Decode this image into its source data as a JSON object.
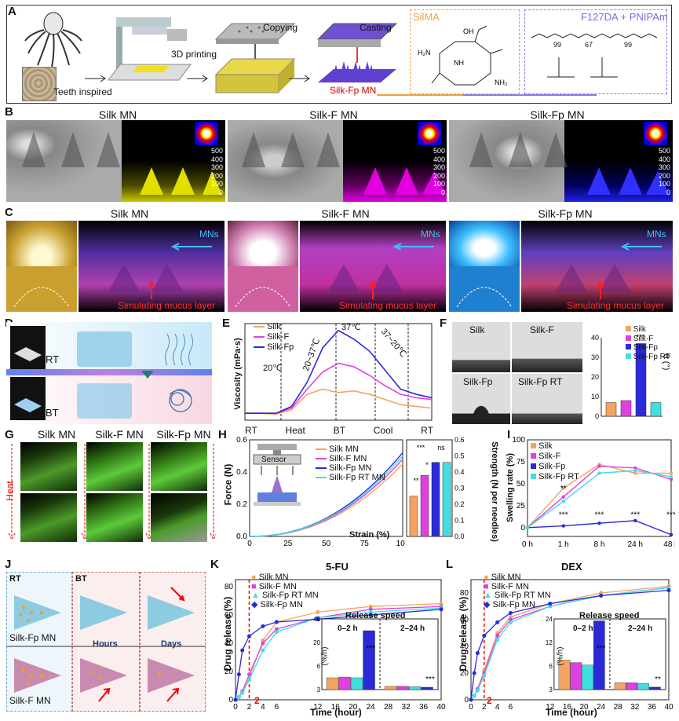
{
  "panels": {
    "A": "A",
    "B": "B",
    "C": "C",
    "D": "D",
    "E": "E",
    "F": "F",
    "G": "G",
    "H": "H",
    "I": "I",
    "J": "J",
    "K": "K",
    "L": "L"
  },
  "a": {
    "teeth": "Teeth inspired",
    "print": "3D printing",
    "copy": "Copying",
    "cast": "Casting",
    "product": "Silk-Fp MN",
    "silma": "SilMA",
    "f127": "F127DA + PNIPAm",
    "n99a": "99",
    "n67": "67",
    "n99b": "99",
    "n": "n"
  },
  "b": {
    "t1": "Silk MN",
    "t2": "Silk-F MN",
    "t3": "Silk-Fp MN",
    "z": [
      "500",
      "400",
      "300",
      "200",
      "100",
      "0"
    ]
  },
  "c": {
    "t1": "Silk MN",
    "t2": "Silk-F MN",
    "t3": "Silk-Fp MN",
    "mns": "MNs",
    "mucus": "Simulating mucus layer"
  },
  "d": {
    "rt": "RT",
    "bt": "BT"
  },
  "e": {
    "ylabel": "Viscosity (mPa·s)",
    "legend": [
      "Silk",
      "Silk-F",
      "Silk-Fp"
    ],
    "stages": [
      "RT",
      "Heat",
      "BT",
      "Cool",
      "RT"
    ],
    "anno": [
      "20℃",
      "20~37℃",
      "37℃",
      "37~20℃"
    ]
  },
  "f": {
    "imgs": [
      "Silk",
      "Silk-F",
      "Silk-Fp",
      "Silk-Fp RT"
    ],
    "legend": [
      "Silk",
      "Silk-F",
      "Silk-Fp",
      "Silk-Fp RT"
    ],
    "ylabel": "θ (°)",
    "sig": "***"
  },
  "g": {
    "t1": "Silk MN",
    "t2": "Silk-F MN",
    "t3": "Silk-Fp MN",
    "heat": "Heat"
  },
  "h": {
    "ylabel": "Force (N)",
    "xlabel": "Strain (%)",
    "y2label": "Strength (N per needles)",
    "legend": [
      "Silk MN",
      "Silk-F MN",
      "Silk-Fp MN",
      "Silk-Fp RT MN"
    ],
    "sensor": "Sensor",
    "sigs": [
      "***",
      "*",
      "ns",
      "**"
    ]
  },
  "i": {
    "ylabel": "Swelling rate (%)",
    "legend": [
      "Silk",
      "Silk-F",
      "Silk-Fp",
      "Silk-Fp RT"
    ],
    "sig": "***",
    "sig2": "**"
  },
  "j": {
    "rt": "RT",
    "bt": "BT",
    "hours": "Hours",
    "days": "Days",
    "fp": "Silk-Fp MN",
    "f": "Silk-F MN"
  },
  "k": {
    "title": "5-FU",
    "ylabel": "Drug release (%)",
    "xlabel": "Time (hour)",
    "legend": [
      "Silk MN",
      "Silk-F MN",
      "Silk-Fp RT MN",
      "Silk-Fp MN"
    ],
    "speed": "Release speed",
    "w1": "0–2 h",
    "w2": "2–24 h",
    "unit": "(%/h)",
    "sig": "***",
    "mark": "2"
  },
  "l": {
    "title": "DEX",
    "ylabel": "Drug release (%)",
    "xlabel": "Time (hour)",
    "legend": [
      "Silk MN",
      "Silk-F MN",
      "Silk-Fp RT MN",
      "Silk-Fp MN"
    ],
    "speed": "Release speed",
    "w1": "0–2 h",
    "w2": "2–24 h",
    "unit": "(%/h)",
    "sig": "***",
    "sig2": "**",
    "mark": "2"
  },
  "colors": {
    "silk": "#f4a460",
    "silkf": "#e040e0",
    "silkfp": "#2a2ad8",
    "silkfprt": "#40e0e0"
  },
  "chart_data": [
    {
      "id": "E",
      "type": "line",
      "ylabel": "Viscosity (mPa·s)",
      "series": [
        {
          "name": "Silk",
          "values": [
            40,
            40,
            35,
            60,
            150,
            180,
            160,
            170,
            150,
            120,
            90,
            80,
            70
          ]
        },
        {
          "name": "Silk-F",
          "values": [
            40,
            40,
            40,
            70,
            180,
            280,
            330,
            310,
            260,
            200,
            150,
            130,
            120
          ]
        },
        {
          "name": "Silk-Fp",
          "values": [
            40,
            40,
            40,
            80,
            220,
            420,
            520,
            470,
            400,
            290,
            180,
            150,
            130
          ]
        }
      ]
    },
    {
      "id": "F",
      "type": "bar",
      "ylabel": "θ (°)",
      "categories": [
        "Silk",
        "Silk-F",
        "Silk-Fp",
        "Silk-Fp RT"
      ],
      "values": [
        7,
        8,
        37,
        7
      ],
      "ylim": [
        0,
        40
      ],
      "ticks": [
        "0",
        "10",
        "20",
        "30",
        "40"
      ]
    },
    {
      "id": "H",
      "type": "bar",
      "y2label": "Strength (N per needles)",
      "categories": [
        "Silk MN",
        "Silk-F MN",
        "Silk-Fp MN",
        "Silk-Fp RT MN"
      ],
      "values": [
        0.25,
        0.38,
        0.46,
        0.46
      ],
      "ylim": [
        0,
        0.6
      ],
      "ticks": [
        "0.0",
        "0.1",
        "0.2",
        "0.3",
        "0.4",
        "0.5",
        "0.6"
      ]
    },
    {
      "id": "H_curve",
      "type": "line",
      "xlabel": "Strain (%)",
      "ylabel": "Force (N)",
      "xlim": [
        0,
        100
      ],
      "ylim": [
        0,
        0.6
      ],
      "xticks": [
        "0",
        "25",
        "50",
        "75",
        "100"
      ],
      "yticks": [
        "0.0",
        "0.2",
        "0.4",
        "0.6"
      ]
    },
    {
      "id": "I",
      "type": "line",
      "x": [
        "0 h",
        "1 h",
        "8 h",
        "24 h",
        "48 h"
      ],
      "ylabel": "Swelling rate (%)",
      "ylim": [
        -10,
        100
      ],
      "yticks": [
        "0",
        "25",
        "50",
        "75",
        "100"
      ],
      "series": [
        {
          "name": "Silk",
          "values": [
            0,
            45,
            72,
            62,
            62
          ]
        },
        {
          "name": "Silk-F",
          "values": [
            0,
            35,
            70,
            68,
            55
          ]
        },
        {
          "name": "Silk-Fp",
          "values": [
            0,
            2,
            5,
            8,
            -8
          ]
        },
        {
          "name": "Silk-Fp RT",
          "values": [
            0,
            30,
            62,
            65,
            58
          ]
        }
      ]
    },
    {
      "id": "K",
      "type": "line",
      "title": "5-FU",
      "x": [
        0,
        0.5,
        1,
        2,
        4,
        6,
        12,
        24,
        40
      ],
      "xticks": [
        "0",
        "2",
        "4",
        "6",
        "12",
        "16",
        "20",
        "24",
        "28",
        "32",
        "36",
        "40"
      ],
      "yticks": [
        "0",
        "20",
        "40",
        "60",
        "80"
      ],
      "ylim": [
        0,
        85
      ],
      "series": [
        {
          "name": "Silk MN",
          "values": [
            0,
            2,
            5,
            15,
            42,
            55,
            62,
            66,
            68
          ]
        },
        {
          "name": "Silk-F MN",
          "values": [
            0,
            2,
            6,
            18,
            40,
            50,
            58,
            64,
            66
          ]
        },
        {
          "name": "Silk-Fp RT MN",
          "values": [
            0,
            2,
            5,
            14,
            35,
            48,
            58,
            62,
            65
          ]
        },
        {
          "name": "Silk-Fp MN",
          "values": [
            0,
            18,
            35,
            45,
            52,
            55,
            57,
            60,
            64
          ]
        }
      ]
    },
    {
      "id": "K_inset",
      "type": "bar",
      "title": "Release speed",
      "categories": [
        "0–2 h",
        "2–24 h"
      ],
      "series": [
        {
          "name": "Silk MN",
          "values": [
            8,
            2.2
          ]
        },
        {
          "name": "Silk-F MN",
          "values": [
            8.5,
            2.2
          ]
        },
        {
          "name": "Silk-Fp RT MN",
          "values": [
            8,
            2
          ]
        },
        {
          "name": "Silk-Fp MN",
          "values": [
            40,
            1
          ]
        }
      ],
      "yticks": [
        "3",
        "6",
        "20",
        "40"
      ]
    },
    {
      "id": "L",
      "type": "line",
      "title": "DEX",
      "x": [
        0,
        0.5,
        1,
        2,
        4,
        6,
        12,
        24,
        40
      ],
      "xticks": [
        "0",
        "2",
        "4",
        "6",
        "12",
        "16",
        "20",
        "24",
        "28",
        "32",
        "36",
        "40"
      ],
      "yticks": [
        "0",
        "20",
        "40",
        "60",
        "80"
      ],
      "ylim": [
        0,
        90
      ],
      "series": [
        {
          "name": "Silk MN",
          "values": [
            0,
            3,
            8,
            22,
            50,
            62,
            72,
            80,
            85
          ]
        },
        {
          "name": "Silk-F MN",
          "values": [
            0,
            3,
            8,
            20,
            48,
            60,
            70,
            78,
            84
          ]
        },
        {
          "name": "Silk-Fp RT MN",
          "values": [
            0,
            3,
            7,
            18,
            45,
            58,
            70,
            78,
            84
          ]
        },
        {
          "name": "Silk-Fp MN",
          "values": [
            0,
            20,
            35,
            48,
            58,
            65,
            72,
            78,
            82
          ]
        }
      ]
    },
    {
      "id": "L_inset",
      "type": "bar",
      "title": "Release speed",
      "categories": [
        "0–2 h",
        "2–24 h"
      ],
      "series": [
        {
          "name": "Silk MN",
          "values": [
            12,
            2.8
          ]
        },
        {
          "name": "Silk-F MN",
          "values": [
            11,
            2.8
          ]
        },
        {
          "name": "Silk-Fp RT MN",
          "values": [
            10,
            2.5
          ]
        },
        {
          "name": "Silk-Fp MN",
          "values": [
            28,
            1
          ]
        }
      ],
      "yticks": [
        "3",
        "6",
        "12",
        "24"
      ]
    }
  ]
}
